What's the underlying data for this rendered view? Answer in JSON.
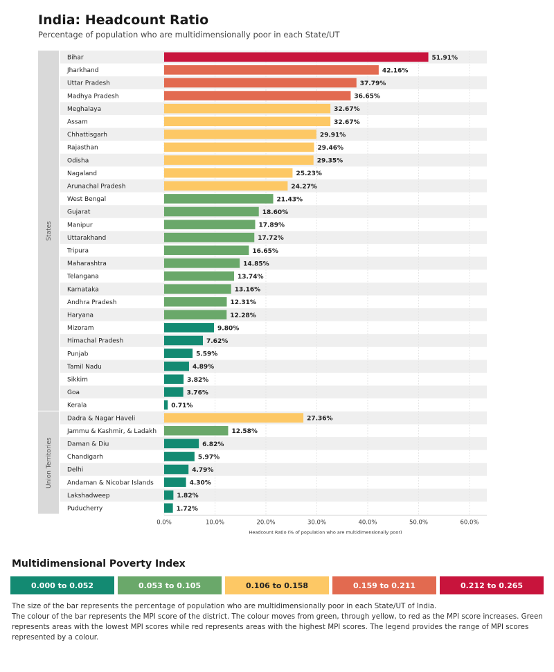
{
  "title": "India: Headcount Ratio",
  "subtitle": "Percentage of population who are multidimensionally poor in each State/UT",
  "colors": {
    "c1": "#138a72",
    "c2": "#6aa86a",
    "c3": "#fdc865",
    "c4": "#e26a50",
    "c5": "#c8143c"
  },
  "chart_data": {
    "type": "bar",
    "orientation": "horizontal",
    "xlabel": "Headcount Ratio (% of population who are multidimensionally poor)",
    "xlim": [
      0,
      60
    ],
    "xticks": [
      "0.0%",
      "10.0%",
      "20.0%",
      "30.0%",
      "40.0%",
      "50.0%",
      "60.0%"
    ],
    "groups": [
      {
        "name": "States",
        "categories": [
          "Bihar",
          "Jharkhand",
          "Uttar Pradesh",
          "Madhya Pradesh",
          "Meghalaya",
          "Assam",
          "Chhattisgarh",
          "Rajasthan",
          "Odisha",
          "Nagaland",
          "Arunachal Pradesh",
          "West Bengal",
          "Gujarat",
          "Manipur",
          "Uttarakhand",
          "Tripura",
          "Maharashtra",
          "Telangana",
          "Karnataka",
          "Andhra Pradesh",
          "Haryana",
          "Mizoram",
          "Himachal Pradesh",
          "Punjab",
          "Tamil Nadu",
          "Sikkim",
          "Goa",
          "Kerala"
        ],
        "values": [
          51.91,
          42.16,
          37.79,
          36.65,
          32.67,
          32.67,
          29.91,
          29.46,
          29.35,
          25.23,
          24.27,
          21.43,
          18.6,
          17.89,
          17.72,
          16.65,
          14.85,
          13.74,
          13.16,
          12.31,
          12.28,
          9.8,
          7.62,
          5.59,
          4.89,
          3.82,
          3.76,
          0.71
        ],
        "labels": [
          "51.91%",
          "42.16%",
          "37.79%",
          "36.65%",
          "32.67%",
          "32.67%",
          "29.91%",
          "29.46%",
          "29.35%",
          "25.23%",
          "24.27%",
          "21.43%",
          "18.60%",
          "17.89%",
          "17.72%",
          "16.65%",
          "14.85%",
          "13.74%",
          "13.16%",
          "12.31%",
          "12.28%",
          "9.80%",
          "7.62%",
          "5.59%",
          "4.89%",
          "3.82%",
          "3.76%",
          "0.71%"
        ],
        "color_class": [
          5,
          4,
          4,
          4,
          3,
          3,
          3,
          3,
          3,
          3,
          3,
          2,
          2,
          2,
          2,
          2,
          2,
          2,
          2,
          2,
          2,
          1,
          1,
          1,
          1,
          1,
          1,
          1
        ]
      },
      {
        "name": "Union Territories",
        "categories": [
          "Dadra & Nagar Haveli",
          "Jammu & Kashmir, & Ladakh",
          "Daman & Diu",
          "Chandigarh",
          "Delhi",
          "Andaman & Nicobar Islands",
          "Lakshadweep",
          "Puducherry"
        ],
        "values": [
          27.36,
          12.58,
          6.82,
          5.97,
          4.79,
          4.3,
          1.82,
          1.72
        ],
        "labels": [
          "27.36%",
          "12.58%",
          "6.82%",
          "5.97%",
          "4.79%",
          "4.30%",
          "1.82%",
          "1.72%"
        ],
        "color_class": [
          3,
          2,
          1,
          1,
          1,
          1,
          1,
          1
        ]
      }
    ]
  },
  "legend": {
    "title": "Multidimensional Poverty Index",
    "items": [
      {
        "label": "0.000 to 0.052",
        "color": "#138a72",
        "text": "#fff"
      },
      {
        "label": "0.053 to 0.105",
        "color": "#6aa86a",
        "text": "#fff"
      },
      {
        "label": "0.106 to 0.158",
        "color": "#fdc865",
        "text": "#222"
      },
      {
        "label": "0.159 to 0.211",
        "color": "#e26a50",
        "text": "#fff"
      },
      {
        "label": "0.212 to 0.265",
        "color": "#c8143c",
        "text": "#fff"
      }
    ]
  },
  "notes": [
    "The size of the bar represents the percentage of population who are multidimensionally poor in each State/UT of India.",
    "The colour of the bar represents the MPI score of the district. The colour moves from green, through yellow, to red as the MPI score increases. Green represents areas with the lowest MPI scores while red represents areas with the highest MPI scores. The legend provides the range of MPI scores represented by a colour."
  ]
}
